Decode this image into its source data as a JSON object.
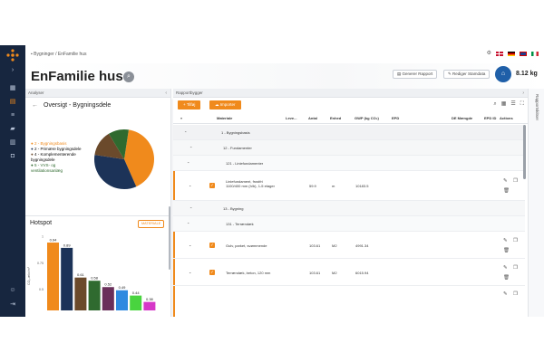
{
  "breadcrumb": {
    "part1": "Bygninger",
    "sep": "/",
    "part2": "EnFamilie hus"
  },
  "header": {
    "title": "EnFamilie hus",
    "generate_report": "Generer Rapport",
    "edit_master": "Rediger Stamdata",
    "co2_value": "8.12 kg"
  },
  "analysis_panel": {
    "title": "Analyser",
    "overview_title": "Oversigt - Bygningsdele",
    "legend": [
      {
        "label": "2 - Bygningsbasis",
        "color": "#f08a1c"
      },
      {
        "label": "2 - Primære bygningsdele",
        "color": "#1c3358"
      },
      {
        "label": "4 - Komplementerende bygningsdele",
        "color": "#6b4a2b"
      },
      {
        "label": "5 - VVS- og ventilationsanlæg",
        "color": "#2f6a2f"
      }
    ],
    "pie": {
      "slices": [
        {
          "value": 41,
          "color": "#f08a1c"
        },
        {
          "value": 34,
          "color": "#1c3358"
        },
        {
          "value": 14,
          "color": "#6b4a2b"
        },
        {
          "value": 11,
          "color": "#2f6a2f"
        }
      ]
    }
  },
  "hotspot": {
    "title": "Hotspot",
    "button": "MATERIALE",
    "yaxis_label": "CO₂-ækv/m²",
    "yticks": [
      "1",
      "0.75",
      "0.5"
    ],
    "bars": [
      {
        "value": 0.94,
        "label": "0.94",
        "color": "#f08a1c"
      },
      {
        "value": 0.89,
        "label": "0.89",
        "color": "#1c3358"
      },
      {
        "value": 0.61,
        "label": "0.61",
        "color": "#6b4a2b"
      },
      {
        "value": 0.58,
        "label": "0.58",
        "color": "#2f6a2f"
      },
      {
        "value": 0.52,
        "label": "0.52",
        "color": "#6a2f5a"
      },
      {
        "value": 0.49,
        "label": "0.49",
        "color": "#2f8ae0"
      },
      {
        "value": 0.44,
        "label": "0.44",
        "color": "#49d43f"
      },
      {
        "value": 0.38,
        "label": "0.38",
        "color": "#d638c8"
      }
    ]
  },
  "report_panel": {
    "title": "Rapportbygger",
    "add_button": "Tilføj",
    "import_button": "Importer",
    "columns": [
      "Materiale",
      "Leve...",
      "Antal",
      "Enhed",
      "GWP (kg CO₂)",
      "EPD",
      "DE Mængde",
      "EPD ID",
      "Actions"
    ],
    "rows": [
      {
        "type": "group",
        "level": 0,
        "label": "1 - Bygningsbasis"
      },
      {
        "type": "group",
        "level": 1,
        "label": "12 - Fundamenter"
      },
      {
        "type": "group",
        "level": 2,
        "label": "121 - Liniefundamenter"
      },
      {
        "type": "item",
        "material": "Liniefundament, frostfri 1100/400 mm (h/b), 1-5 etager",
        "antal": "59.9",
        "enhed": "m",
        "gwp": "10183.5"
      },
      {
        "type": "group",
        "level": 1,
        "label": "13 - Bygning"
      },
      {
        "type": "group",
        "level": 2,
        "label": "131 - Terrændæk"
      },
      {
        "type": "item",
        "material": "Gulv, parket, svømmende",
        "antal": "103.61",
        "enhed": "M2",
        "gwp": "4991.34"
      },
      {
        "type": "item",
        "material": "Terrændæk, beton, 120 mm",
        "antal": "103.61",
        "enhed": "M2",
        "gwp": "6015.94"
      }
    ]
  },
  "side_strip": {
    "label": "Rapportskitser"
  },
  "colors": {
    "accent": "#f08a1c",
    "rail": "#17263f",
    "navy": "#1f5fa8"
  }
}
